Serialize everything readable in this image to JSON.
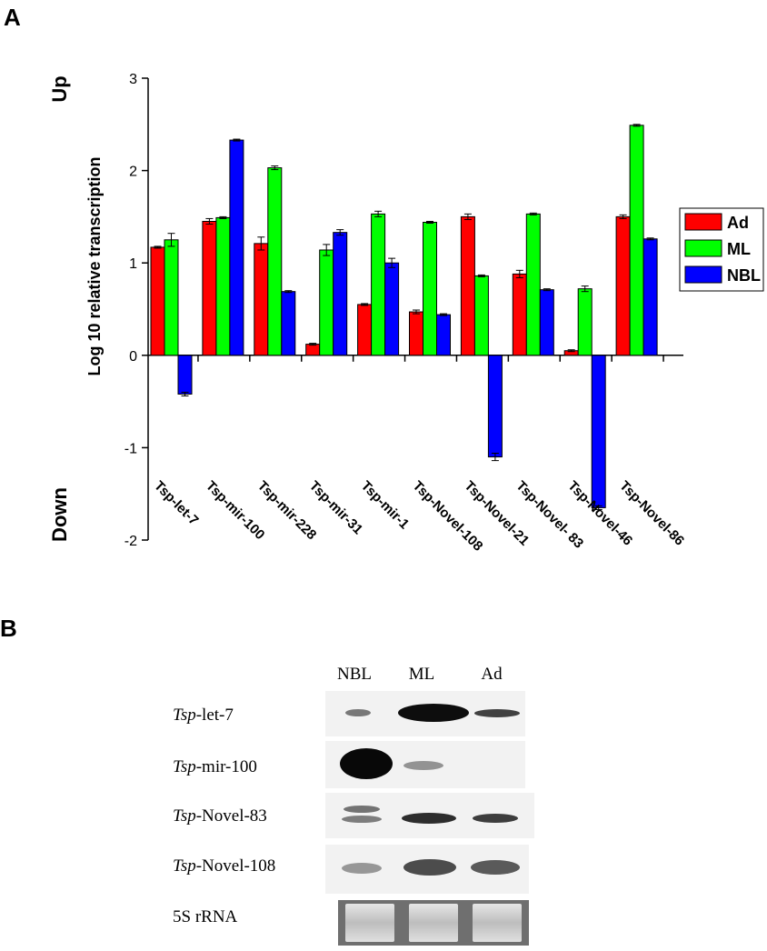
{
  "panel_a": {
    "letter": "A"
  },
  "panel_b": {
    "letter": "B"
  },
  "chart_data": {
    "type": "bar",
    "title": "",
    "xlabel": "",
    "ylabel": "Log 10 relative transcription",
    "side_labels": {
      "up": "Up",
      "down": "Down"
    },
    "ylim": [
      -2,
      3
    ],
    "yticks": [
      -2,
      -1,
      0,
      1,
      2,
      3
    ],
    "grid": false,
    "legend_position": "right",
    "categories": [
      "Tsp-let-7",
      "Tsp-mir-100",
      "Tsp-mir-228",
      "Tsp-mir-31",
      "Tsp-mir-1",
      "Tsp-Novel-108",
      "Tsp-Novel-21",
      "Tsp-Novel- 83",
      "Tsp-Novel-46",
      "Tsp-Novel-86"
    ],
    "series": [
      {
        "name": "Ad",
        "color": "#ff0000",
        "values": [
          1.17,
          1.45,
          1.21,
          0.12,
          0.55,
          0.47,
          1.5,
          0.88,
          0.05,
          1.5
        ],
        "errors": [
          0.01,
          0.03,
          0.07,
          0.01,
          0.01,
          0.02,
          0.03,
          0.04,
          0.01,
          0.02
        ]
      },
      {
        "name": "ML",
        "color": "#00ff00",
        "values": [
          1.25,
          1.49,
          2.03,
          1.14,
          1.53,
          1.44,
          0.86,
          1.53,
          0.72,
          2.49
        ],
        "errors": [
          0.07,
          0.01,
          0.02,
          0.06,
          0.03,
          0.01,
          0.01,
          0.01,
          0.03,
          0.01
        ]
      },
      {
        "name": "NBL",
        "color": "#0000ff",
        "values": [
          -0.42,
          2.33,
          0.69,
          1.33,
          1.0,
          0.44,
          -1.1,
          0.71,
          -1.65,
          1.26
        ],
        "errors": [
          0.02,
          0.01,
          0.01,
          0.03,
          0.05,
          0.01,
          0.04,
          0.01,
          0.02,
          0.01
        ]
      }
    ]
  },
  "blot": {
    "lanes": [
      "NBL",
      "ML",
      "Ad"
    ],
    "rows": [
      {
        "label_italic": "Tsp",
        "label_rest": "-let-7",
        "intensity": [
          0.45,
          1.0,
          0.7
        ]
      },
      {
        "label_italic": "Tsp",
        "label_rest": "-mir-100",
        "intensity": [
          1.0,
          0.4,
          0.0
        ]
      },
      {
        "label_italic": "Tsp",
        "label_rest": "-Novel-83",
        "intensity": [
          0.55,
          0.8,
          0.75
        ]
      },
      {
        "label_italic": "Tsp",
        "label_rest": "-Novel-108",
        "intensity": [
          0.5,
          0.85,
          0.8
        ]
      },
      {
        "label_italic": "",
        "label_rest": "5S rRNA",
        "intensity": [
          1.0,
          1.0,
          1.0
        ]
      }
    ]
  }
}
